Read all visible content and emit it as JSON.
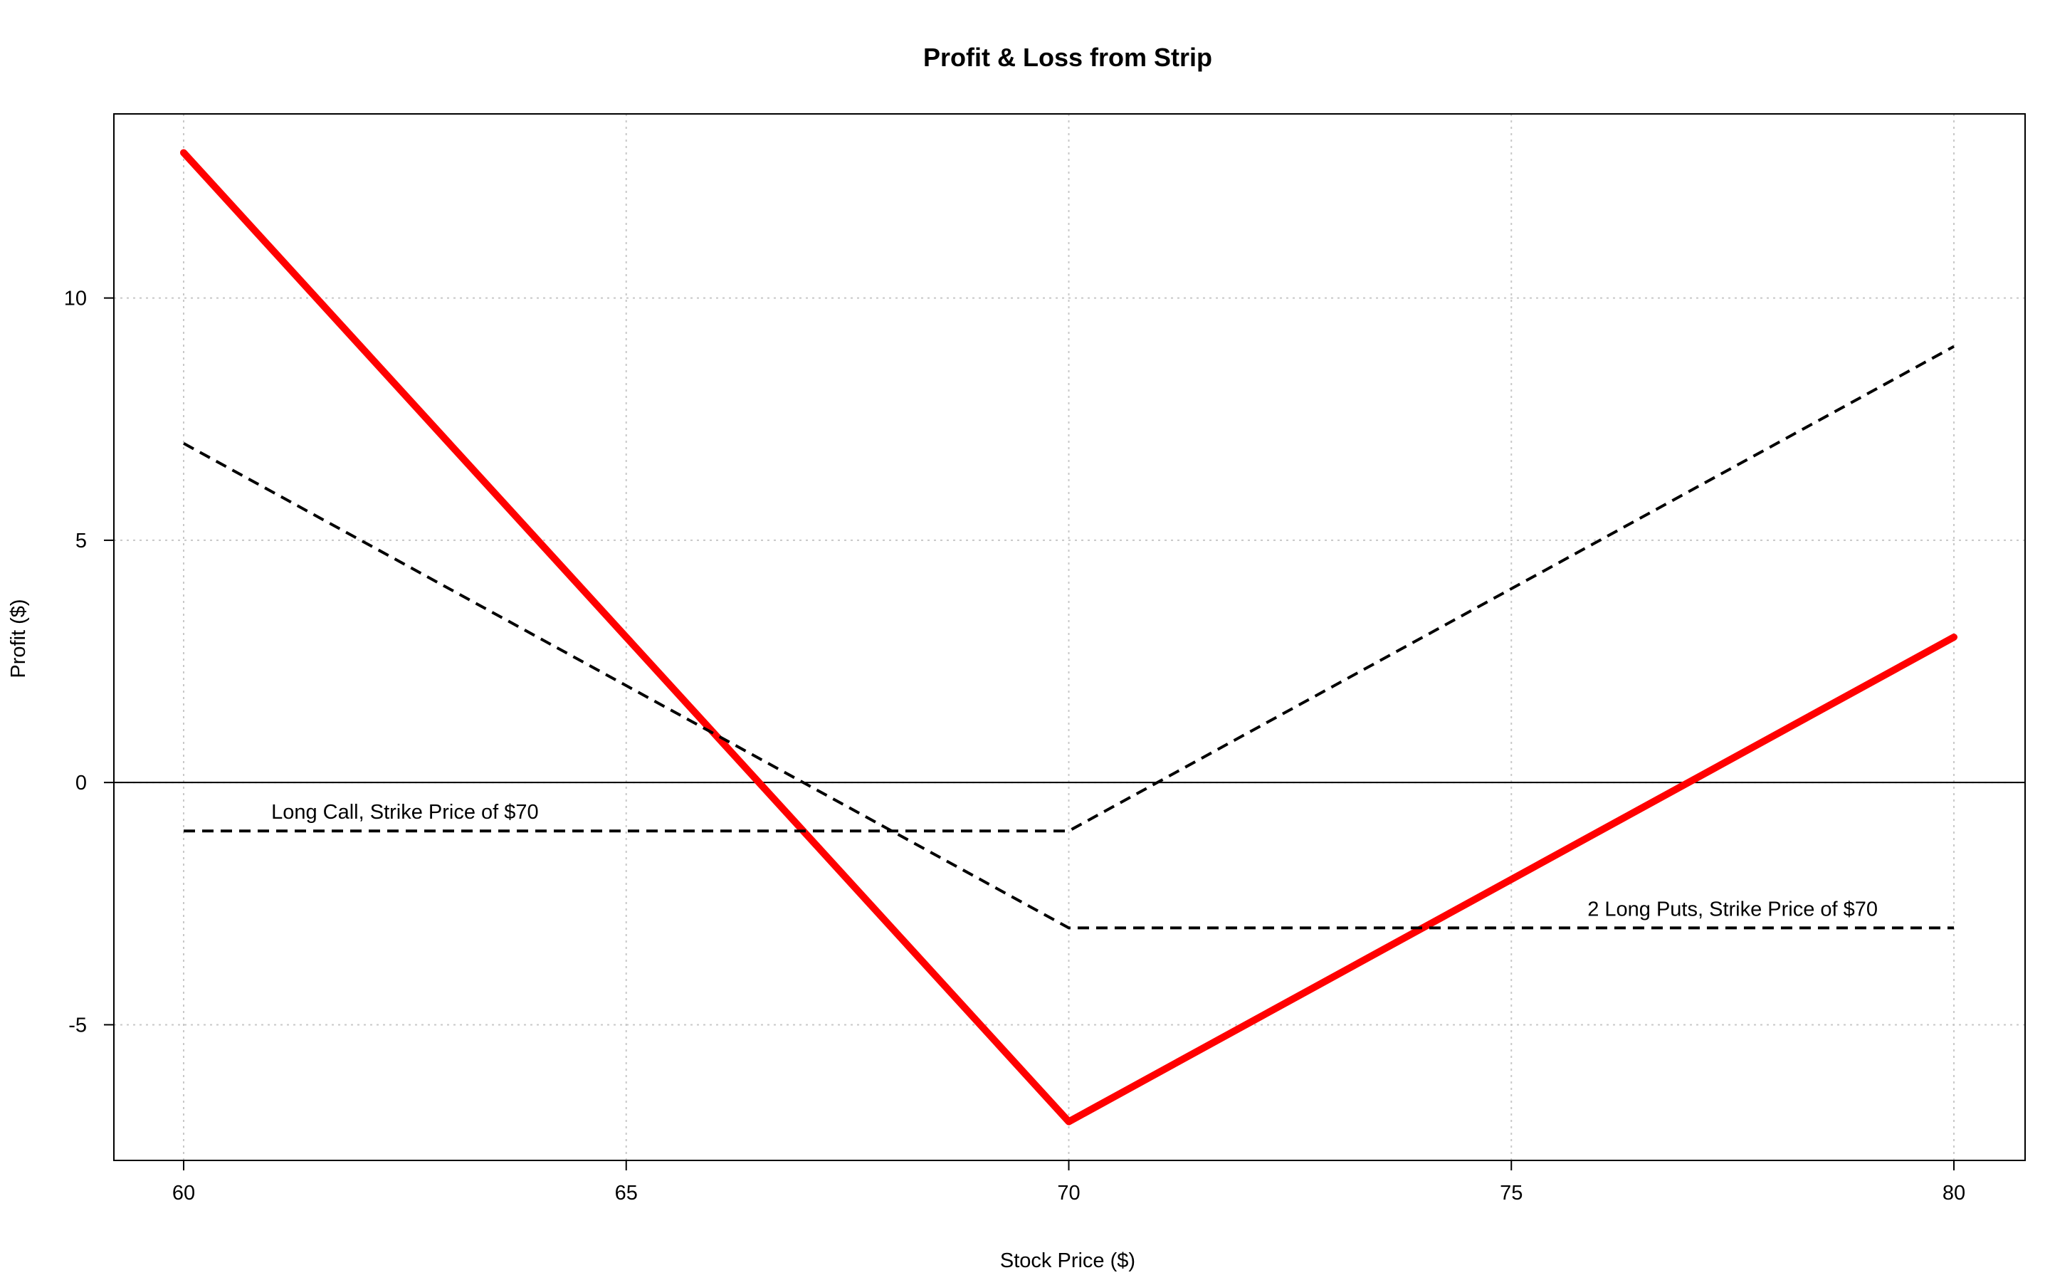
{
  "chart_data": {
    "type": "line",
    "title": "Profit & Loss from Strip",
    "xlabel": "Stock Price ($)",
    "ylabel": "Profit ($)",
    "xlim": [
      60,
      80
    ],
    "ylim": [
      -7.8,
      13.8
    ],
    "x_ticks": [
      60,
      65,
      70,
      75,
      80
    ],
    "y_ticks": [
      -5,
      0,
      5,
      10
    ],
    "grid": true,
    "legend": "none",
    "series": [
      {
        "style": "thick solid red",
        "color": "#ff0000",
        "x": [
          60,
          70,
          80
        ],
        "y": [
          13,
          -7,
          3
        ]
      },
      {
        "style": "dashed black",
        "color": "#000000",
        "x": [
          60,
          70,
          80
        ],
        "y": [
          -1,
          -1,
          9
        ]
      },
      {
        "style": "dashed black",
        "color": "#000000",
        "x": [
          60,
          70,
          80
        ],
        "y": [
          7,
          -3,
          -3
        ]
      }
    ],
    "annotations": [
      {
        "text": "Long Call, Strike Price of $70",
        "x": 62.5,
        "y": -0.75
      },
      {
        "text": "2 Long Puts, Strike Price of $70",
        "x": 77.5,
        "y": -2.75
      }
    ],
    "reference_line": {
      "y": 0
    }
  }
}
